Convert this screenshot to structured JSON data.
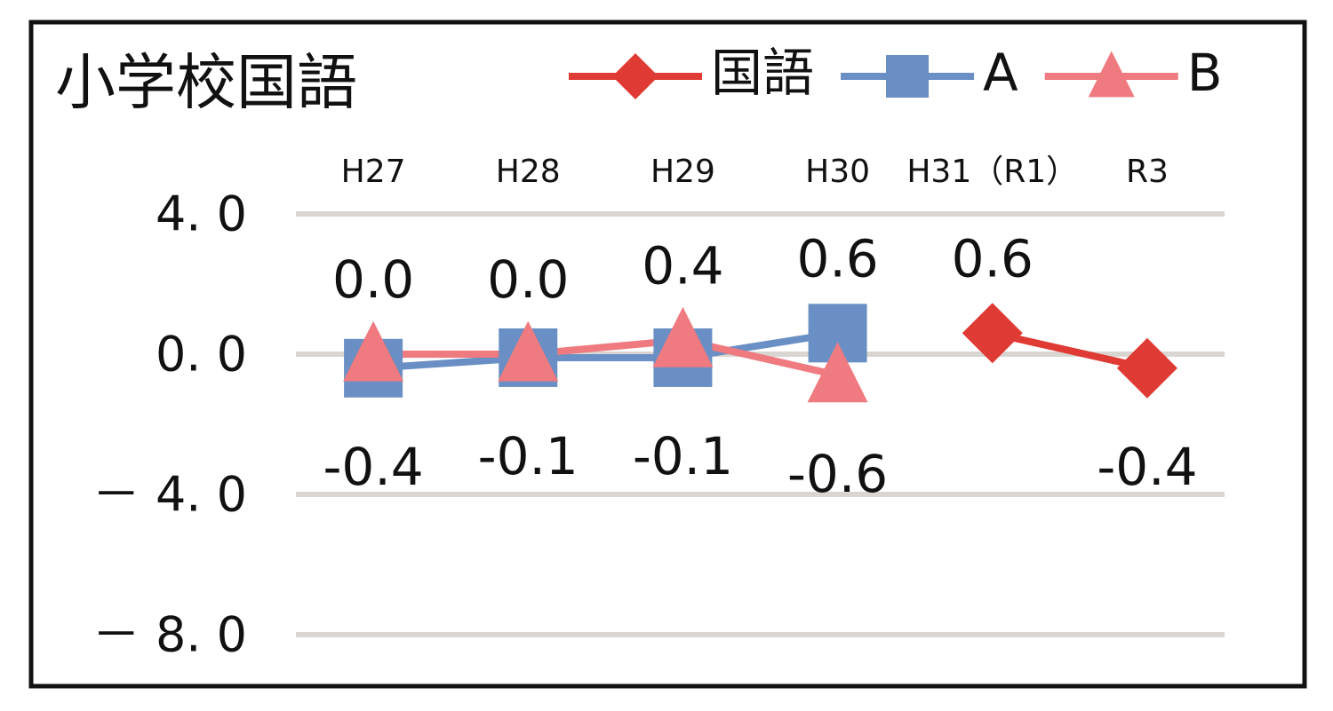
{
  "chart_data": {
    "type": "line",
    "title": "小学校国語",
    "categories": [
      "H27",
      "H28",
      "H29",
      "H30",
      "H31（R1）",
      "R3"
    ],
    "series": [
      {
        "name": "国語",
        "color": "#e03a34",
        "marker": "diamond",
        "values": [
          null,
          null,
          null,
          null,
          0.6,
          -0.4
        ],
        "value_labels": [
          null,
          null,
          null,
          null,
          "0.6",
          "-0.4"
        ]
      },
      {
        "name": "A",
        "color": "#6a8fc4",
        "marker": "square",
        "values": [
          -0.4,
          -0.1,
          -0.1,
          0.6,
          null,
          null
        ],
        "value_labels": [
          "-0.4",
          "-0.1",
          "-0.1",
          "0.6",
          null,
          null
        ]
      },
      {
        "name": "B",
        "color": "#ef7a80",
        "marker": "triangle",
        "values": [
          0.0,
          0.0,
          0.4,
          -0.6,
          null,
          null
        ],
        "value_labels": [
          "0.0",
          "0.0",
          "0.4",
          "-0.6",
          null,
          null
        ]
      }
    ],
    "ylim": [
      -8,
      4
    ],
    "yticks": [
      {
        "value": -8,
        "label": "－ 8. 0"
      },
      {
        "value": -4,
        "label": "－ 4. 0"
      },
      {
        "value": 0,
        "label": "0. 0"
      },
      {
        "value": 4,
        "label": "4. 0"
      }
    ],
    "grid": true,
    "legend": "top-right"
  }
}
